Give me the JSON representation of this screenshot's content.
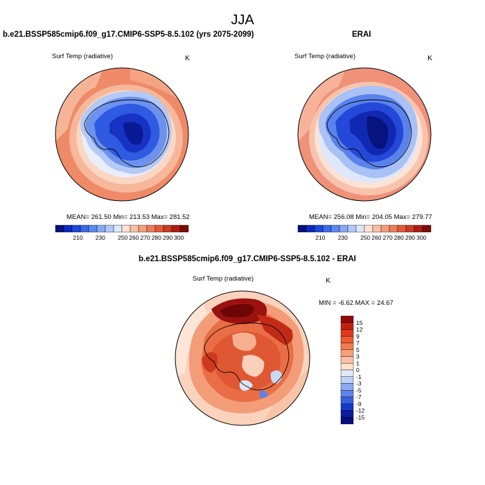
{
  "figure": {
    "season_title": "JJA"
  },
  "panels": [
    {
      "title": "b.e21.BSSP585cmip6.f09_g17.CMIP6-SSP5-8.5.102 (yrs 2075-2099)",
      "variable": "Surf Temp (radiative)",
      "units": "K",
      "stats": "MEAN= 261.50   Min= 213.53   Max= 281.52",
      "colorbar": {
        "labels": [
          "210",
          "230",
          "250",
          "260",
          "270",
          "280",
          "290",
          "300"
        ],
        "colors": [
          "#08107a",
          "#0a2bbd",
          "#1c48de",
          "#3a6ae8",
          "#5c8aee",
          "#86aaf2",
          "#b2c9f6",
          "#dde7fa",
          "#fde3d3",
          "#f9c1a5",
          "#f29f7c",
          "#ea7c58",
          "#e05a3a",
          "#cc3a22",
          "#ad1e12",
          "#7e0a08"
        ]
      }
    },
    {
      "title": "ERAI",
      "variable": "Surf Temp (radiative)",
      "units": "K",
      "stats": "MEAN= 256.08   Min= 204.05   Max= 279.77",
      "colorbar": {
        "labels": [
          "210",
          "230",
          "250",
          "260",
          "270",
          "280",
          "290",
          "300"
        ],
        "colors": [
          "#08107a",
          "#0a2bbd",
          "#1c48de",
          "#3a6ae8",
          "#5c8aee",
          "#86aaf2",
          "#b2c9f6",
          "#dde7fa",
          "#fde3d3",
          "#f9c1a5",
          "#f29f7c",
          "#ea7c58",
          "#e05a3a",
          "#cc3a22",
          "#ad1e12",
          "#7e0a08"
        ]
      }
    },
    {
      "title": "b.e21.BSSP585cmip6.f09_g17.CMIP6-SSP5-8.5.102 - ERAI",
      "variable": "Surf Temp (radiative)",
      "units": "K",
      "stats": "MIN = -6.62 MAX = 24.67",
      "colorbar": {
        "labels": [
          "15",
          "12",
          "9",
          "7",
          "5",
          "3",
          "1",
          "0",
          "-1",
          "-3",
          "-5",
          "-7",
          "-9",
          "-12",
          "-15"
        ],
        "colors": [
          "#8f0b0b",
          "#c4200f",
          "#e0391a",
          "#ee5a2e",
          "#f27d4f",
          "#f6a07a",
          "#f9c1a4",
          "#fde0cc",
          "#dfe9fb",
          "#bccff6",
          "#8caaf0",
          "#5d84e8",
          "#3561de",
          "#1738c7",
          "#0a1ca0",
          "#050e7a"
        ]
      }
    }
  ]
}
